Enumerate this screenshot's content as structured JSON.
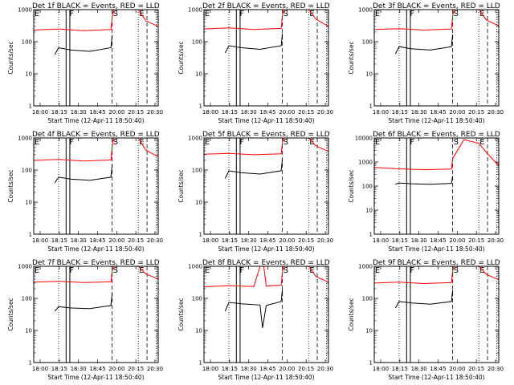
{
  "chart_data": [
    {
      "type": "line",
      "title": "Det 1f BLACK = Events, RED = LLD",
      "xlabel": "Start Time (12-Apr-11 18:50:40)",
      "ylabel": "Counts/sec",
      "yscale": "log",
      "ylim": [
        1,
        1000
      ],
      "y_ticks": [
        "1",
        "10",
        "100",
        "1000"
      ],
      "x_ticks": [
        "18:00",
        "18:15",
        "18:30",
        "18:45",
        "20:00",
        "20:15",
        "20:30"
      ],
      "event_labels": [
        {
          "label": "E",
          "at": 0.0
        },
        {
          "label": "F",
          "at": 0.28
        },
        {
          "label": "S",
          "at": 0.63
        },
        {
          "label": "E",
          "at": 0.84
        }
      ],
      "lines": {
        "dotted": [
          0.2,
          0.84,
          0.985
        ],
        "solid": [
          0.26,
          0.29
        ],
        "dashed": [
          0.63,
          0.91
        ]
      },
      "series": [
        {
          "color": "#ff0000",
          "x": [
            0.0,
            0.2,
            0.4,
            0.62,
            0.63,
            0.64,
            0.84,
            0.9,
            1.0
          ],
          "y": [
            230,
            250,
            220,
            240,
            600,
            1000,
            1000,
            450,
            300
          ]
        },
        {
          "color": "#000000",
          "x": [
            0.17,
            0.2,
            0.3,
            0.45,
            0.62,
            0.63
          ],
          "y": [
            40,
            65,
            55,
            50,
            65,
            160
          ]
        }
      ]
    },
    {
      "type": "line",
      "title": "Det 2f BLACK = Events, RED = LLD",
      "xlabel": "Start Time (12-Apr-11 18:50:40)",
      "ylabel": "Counts/sec",
      "yscale": "log",
      "ylim": [
        1,
        1000
      ],
      "y_ticks": [
        "1",
        "10",
        "100",
        "1000"
      ],
      "x_ticks": [
        "18:00",
        "18:15",
        "18:30",
        "18:45",
        "20:00",
        "20:15",
        "20:30"
      ],
      "event_labels": [
        {
          "label": "E",
          "at": 0.0
        },
        {
          "label": "F",
          "at": 0.28
        },
        {
          "label": "S",
          "at": 0.63
        },
        {
          "label": "E",
          "at": 0.84
        }
      ],
      "lines": {
        "dotted": [
          0.2,
          0.84,
          0.985
        ],
        "solid": [
          0.26,
          0.29
        ],
        "dashed": [
          0.63,
          0.91
        ]
      },
      "series": [
        {
          "color": "#ff0000",
          "x": [
            0.0,
            0.2,
            0.4,
            0.62,
            0.63,
            0.64,
            0.84,
            0.9,
            1.0
          ],
          "y": [
            250,
            270,
            240,
            260,
            650,
            1000,
            1000,
            500,
            300
          ]
        },
        {
          "color": "#000000",
          "x": [
            0.17,
            0.2,
            0.3,
            0.45,
            0.62,
            0.63
          ],
          "y": [
            45,
            75,
            65,
            58,
            75,
            180
          ]
        }
      ]
    },
    {
      "type": "line",
      "title": "Det 3f BLACK = Events, RED = LLD",
      "xlabel": "Start Time (12-Apr-11 18:50:40)",
      "ylabel": "Counts/sec",
      "yscale": "log",
      "ylim": [
        1,
        1000
      ],
      "y_ticks": [
        "1",
        "10",
        "100",
        "1000"
      ],
      "x_ticks": [
        "18:00",
        "18:15",
        "18:30",
        "18:45",
        "20:00",
        "20:15",
        "20:30"
      ],
      "event_labels": [
        {
          "label": "E",
          "at": 0.0
        },
        {
          "label": "F",
          "at": 0.28
        },
        {
          "label": "S",
          "at": 0.63
        },
        {
          "label": "E",
          "at": 0.84
        }
      ],
      "lines": {
        "dotted": [
          0.2,
          0.84,
          0.985
        ],
        "solid": [
          0.26,
          0.29
        ],
        "dashed": [
          0.63,
          0.91
        ]
      },
      "series": [
        {
          "color": "#ff0000",
          "x": [
            0.0,
            0.2,
            0.4,
            0.62,
            0.63,
            0.64,
            0.84,
            0.9,
            1.0
          ],
          "y": [
            240,
            255,
            230,
            250,
            620,
            1000,
            1000,
            480,
            310
          ]
        },
        {
          "color": "#000000",
          "x": [
            0.17,
            0.2,
            0.3,
            0.45,
            0.62,
            0.63
          ],
          "y": [
            42,
            70,
            60,
            55,
            70,
            170
          ]
        }
      ]
    },
    {
      "type": "line",
      "title": "Det 4f BLACK = Events, RED = LLD",
      "xlabel": "Start Time (12-Apr-11 18:50:40)",
      "ylabel": "Counts/sec",
      "yscale": "log",
      "ylim": [
        1,
        1000
      ],
      "y_ticks": [
        "1",
        "10",
        "100",
        "1000"
      ],
      "x_ticks": [
        "18:00",
        "18:15",
        "18:30",
        "18:45",
        "20:00",
        "20:15",
        "20:30"
      ],
      "event_labels": [
        {
          "label": "E",
          "at": 0.0
        },
        {
          "label": "F",
          "at": 0.28
        },
        {
          "label": "S",
          "at": 0.63
        },
        {
          "label": "E",
          "at": 0.84
        }
      ],
      "lines": {
        "dotted": [
          0.2,
          0.84,
          0.985
        ],
        "solid": [
          0.26,
          0.29
        ],
        "dashed": [
          0.63,
          0.91
        ]
      },
      "series": [
        {
          "color": "#ff0000",
          "x": [
            0.0,
            0.2,
            0.4,
            0.62,
            0.63,
            0.64,
            0.84,
            0.9,
            1.0
          ],
          "y": [
            200,
            215,
            190,
            205,
            550,
            1000,
            1000,
            420,
            260
          ]
        },
        {
          "color": "#000000",
          "x": [
            0.17,
            0.2,
            0.3,
            0.45,
            0.62,
            0.63
          ],
          "y": [
            40,
            60,
            52,
            48,
            60,
            150
          ]
        }
      ]
    },
    {
      "type": "line",
      "title": "Det 5f BLACK = Events, RED = LLD",
      "xlabel": "Start Time (12-Apr-11 18:50:40)",
      "ylabel": "Counts/sec",
      "yscale": "log",
      "ylim": [
        1,
        1000
      ],
      "y_ticks": [
        "1",
        "10",
        "100",
        "1000"
      ],
      "x_ticks": [
        "18:00",
        "18:15",
        "18:30",
        "18:45",
        "20:00",
        "20:15",
        "20:30"
      ],
      "event_labels": [
        {
          "label": "E",
          "at": 0.0
        },
        {
          "label": "F",
          "at": 0.28
        },
        {
          "label": "S",
          "at": 0.63
        },
        {
          "label": "E",
          "at": 0.84
        }
      ],
      "lines": {
        "dotted": [
          0.2,
          0.84,
          0.985
        ],
        "solid": [
          0.26,
          0.29
        ],
        "dashed": [
          0.63,
          0.91
        ]
      },
      "series": [
        {
          "color": "#ff0000",
          "x": [
            0.0,
            0.2,
            0.4,
            0.62,
            0.63,
            0.64,
            0.84,
            0.9,
            1.0
          ],
          "y": [
            310,
            330,
            300,
            320,
            700,
            1000,
            1000,
            560,
            380
          ]
        },
        {
          "color": "#000000",
          "x": [
            0.17,
            0.2,
            0.3,
            0.45,
            0.62,
            0.63
          ],
          "y": [
            55,
            95,
            82,
            75,
            95,
            220
          ]
        }
      ]
    },
    {
      "type": "line",
      "title": "Det 6f BLACK = Events, RED = LLD",
      "xlabel": "Start Time (12-Apr-11 18:50:40)",
      "ylabel": "Counts/sec",
      "yscale": "log",
      "ylim": [
        1,
        10000
      ],
      "y_ticks": [
        "1",
        "10",
        "100",
        "1000",
        "10000"
      ],
      "x_ticks": [
        "18:00",
        "18:15",
        "18:30",
        "18:45",
        "20:00",
        "20:15",
        "20:30"
      ],
      "event_labels": [
        {
          "label": "E",
          "at": 0.0
        },
        {
          "label": "F",
          "at": 0.28
        },
        {
          "label": "S",
          "at": 0.63
        },
        {
          "label": "E",
          "at": 0.84
        }
      ],
      "lines": {
        "dotted": [
          0.2,
          0.84,
          0.985
        ],
        "solid": [
          0.26,
          0.29
        ],
        "dashed": [
          0.63,
          0.91
        ]
      },
      "series": [
        {
          "color": "#ff0000",
          "x": [
            0.0,
            0.2,
            0.4,
            0.62,
            0.63,
            0.72,
            0.84,
            0.9,
            1.0
          ],
          "y": [
            600,
            520,
            480,
            510,
            1400,
            8500,
            6000,
            2500,
            700
          ]
        },
        {
          "color": "#000000",
          "x": [
            0.17,
            0.2,
            0.3,
            0.45,
            0.62,
            0.63
          ],
          "y": [
            120,
            135,
            125,
            118,
            130,
            260
          ]
        }
      ]
    },
    {
      "type": "line",
      "title": "Det 7f BLACK = Events, RED = LLD",
      "xlabel": "Start Time (12-Apr-11 18:50:40)",
      "ylabel": "Counts/sec",
      "yscale": "log",
      "ylim": [
        1,
        1000
      ],
      "y_ticks": [
        "1",
        "10",
        "100",
        "1000"
      ],
      "x_ticks": [
        "18:00",
        "18:15",
        "18:30",
        "18:45",
        "20:00",
        "20:15",
        "20:30"
      ],
      "event_labels": [
        {
          "label": "E",
          "at": 0.0
        },
        {
          "label": "F",
          "at": 0.28
        },
        {
          "label": "S",
          "at": 0.63
        },
        {
          "label": "E",
          "at": 0.84
        }
      ],
      "lines": {
        "dotted": [
          0.2,
          0.84,
          0.985
        ],
        "solid": [
          0.26,
          0.29
        ],
        "dashed": [
          0.63,
          0.91
        ]
      },
      "series": [
        {
          "color": "#ff0000",
          "x": [
            0.0,
            0.2,
            0.4,
            0.62,
            0.63,
            0.64,
            0.84,
            0.9,
            1.0
          ],
          "y": [
            320,
            340,
            310,
            330,
            720,
            1000,
            1000,
            580,
            400
          ]
        },
        {
          "color": "#000000",
          "x": [
            0.17,
            0.2,
            0.3,
            0.45,
            0.62,
            0.63
          ],
          "y": [
            40,
            55,
            50,
            48,
            60,
            150
          ]
        }
      ]
    },
    {
      "type": "line",
      "title": "Det 8f BLACK = Events, RED = LLD",
      "xlabel": "Start Time (12-Apr-11 18:50:40)",
      "ylabel": "Counts/sec",
      "yscale": "log",
      "ylim": [
        1,
        1000
      ],
      "y_ticks": [
        "1",
        "10",
        "100",
        "1000"
      ],
      "x_ticks": [
        "18:00",
        "18:15",
        "18:30",
        "18:45",
        "20:00",
        "20:15",
        "20:30"
      ],
      "event_labels": [
        {
          "label": "E",
          "at": 0.0
        },
        {
          "label": "F",
          "at": 0.28
        },
        {
          "label": "S",
          "at": 0.63
        },
        {
          "label": "E",
          "at": 0.84
        }
      ],
      "lines": {
        "dotted": [
          0.2,
          0.84,
          0.985
        ],
        "solid": [
          0.26,
          0.29
        ],
        "dashed": [
          0.63,
          0.91
        ]
      },
      "series": [
        {
          "color": "#ff0000",
          "x": [
            0.0,
            0.2,
            0.4,
            0.45,
            0.48,
            0.5,
            0.62,
            0.63,
            0.64,
            0.84,
            0.9,
            1.0
          ],
          "y": [
            230,
            250,
            235,
            1000,
            1000,
            240,
            260,
            650,
            1000,
            1000,
            480,
            320
          ]
        },
        {
          "color": "#000000",
          "x": [
            0.17,
            0.2,
            0.3,
            0.45,
            0.47,
            0.5,
            0.62,
            0.63
          ],
          "y": [
            40,
            75,
            68,
            62,
            12,
            60,
            80,
            190
          ]
        }
      ]
    },
    {
      "type": "line",
      "title": "Det 9f BLACK = Events, RED = LLD",
      "xlabel": "Start Time (12-Apr-11 18:50:40)",
      "ylabel": "Counts/sec",
      "yscale": "log",
      "ylim": [
        1,
        1000
      ],
      "y_ticks": [
        "1",
        "10",
        "100",
        "1000"
      ],
      "x_ticks": [
        "18:00",
        "18:15",
        "18:30",
        "18:45",
        "20:00",
        "20:15",
        "20:30"
      ],
      "event_labels": [
        {
          "label": "E",
          "at": 0.0
        },
        {
          "label": "F",
          "at": 0.28
        },
        {
          "label": "S",
          "at": 0.63
        },
        {
          "label": "E",
          "at": 0.84
        }
      ],
      "lines": {
        "dotted": [
          0.2,
          0.84,
          0.985
        ],
        "solid": [
          0.26,
          0.29
        ],
        "dashed": [
          0.63,
          0.91
        ]
      },
      "series": [
        {
          "color": "#ff0000",
          "x": [
            0.0,
            0.2,
            0.4,
            0.62,
            0.63,
            0.64,
            0.84,
            0.9,
            1.0
          ],
          "y": [
            300,
            320,
            290,
            310,
            700,
            1000,
            1000,
            560,
            380
          ]
        },
        {
          "color": "#000000",
          "x": [
            0.17,
            0.2,
            0.3,
            0.45,
            0.62,
            0.63
          ],
          "y": [
            50,
            80,
            72,
            66,
            80,
            180
          ]
        }
      ]
    }
  ]
}
